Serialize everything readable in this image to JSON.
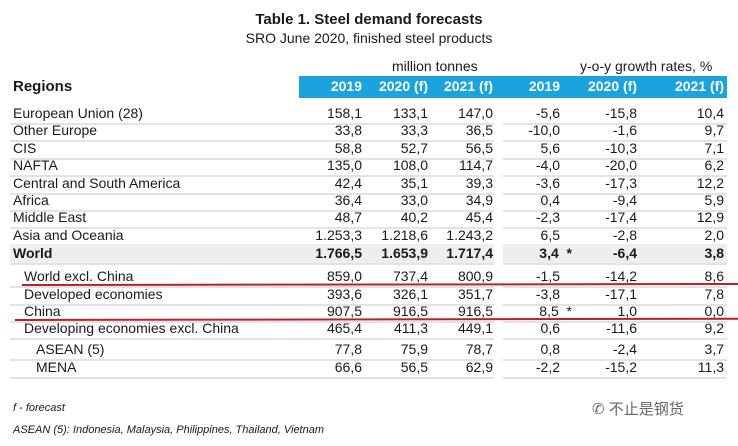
{
  "title": "Table 1. Steel demand forecasts",
  "subtitle": "SRO June 2020, finished steel products",
  "group_left": "million tonnes",
  "group_right": "y-o-y growth rates, %",
  "regions_header": "Regions",
  "columns": [
    "2019",
    "2020 (f)",
    "2021 (f)",
    "2019",
    "2020 (f)",
    "2021 (f)"
  ],
  "header_bar_color": "#1aa3dc",
  "highlight_line_color": "#b5222b",
  "rows": [
    {
      "label": "European Union (28)",
      "v": [
        "158,1",
        "133,1",
        "147,0",
        "-5,6",
        "-15,8",
        "10,4"
      ]
    },
    {
      "label": "Other Europe",
      "v": [
        "33,8",
        "33,3",
        "36,5",
        "-10,0",
        "-1,6",
        "9,7"
      ]
    },
    {
      "label": "CIS",
      "v": [
        "58,8",
        "52,7",
        "56,5",
        "5,6",
        "-10,3",
        "7,1"
      ]
    },
    {
      "label": "NAFTA",
      "v": [
        "135,0",
        "108,0",
        "114,7",
        "-4,0",
        "-20,0",
        "6,2"
      ]
    },
    {
      "label": "Central and South America",
      "v": [
        "42,4",
        "35,1",
        "39,3",
        "-3,6",
        "-17,3",
        "12,2"
      ]
    },
    {
      "label": "Africa",
      "v": [
        "36,4",
        "33,0",
        "34,9",
        "0,4",
        "-9,4",
        "5,9"
      ]
    },
    {
      "label": "Middle East",
      "v": [
        "48,7",
        "40,2",
        "45,4",
        "-2,3",
        "-17,4",
        "12,9"
      ]
    },
    {
      "label": "Asia and Oceania",
      "v": [
        "1.253,3",
        "1.218,6",
        "1.243,2",
        "6,5",
        "-2,8",
        "2,0"
      ]
    },
    {
      "label": "World",
      "v": [
        "1.766,5",
        "1.653,9",
        "1.717,4",
        "3,4  *",
        "-6,4",
        "3,8"
      ]
    },
    {
      "label": "World excl. China",
      "v": [
        "859,0",
        "737,4",
        "800,9",
        "-1,5",
        "-14,2",
        "8,6"
      ]
    },
    {
      "label": "Developed economies",
      "v": [
        "393,6",
        "326,1",
        "351,7",
        "-3,8",
        "-17,1",
        "7,8"
      ]
    },
    {
      "label": "China",
      "v": [
        "907,5",
        "916,5",
        "916,5",
        "8,5  *",
        "1,0",
        "0,0"
      ]
    },
    {
      "label": "Developing economies excl. China",
      "v": [
        "465,4",
        "411,3",
        "449,1",
        "0,6",
        "-11,6",
        "9,2"
      ]
    },
    {
      "label": "ASEAN (5)",
      "v": [
        "77,8",
        "75,9",
        "78,7",
        "0,8",
        "-2,4",
        "3,7"
      ]
    },
    {
      "label": "MENA",
      "v": [
        "66,6",
        "56,5",
        "62,9",
        "-2,2",
        "-15,2",
        "11,3"
      ]
    }
  ],
  "notes": [
    "f - forecast",
    "ASEAN (5): Indonesia, Malaysia, Philippines, Thailand, Vietnam"
  ],
  "watermark": "不止是钢货"
}
